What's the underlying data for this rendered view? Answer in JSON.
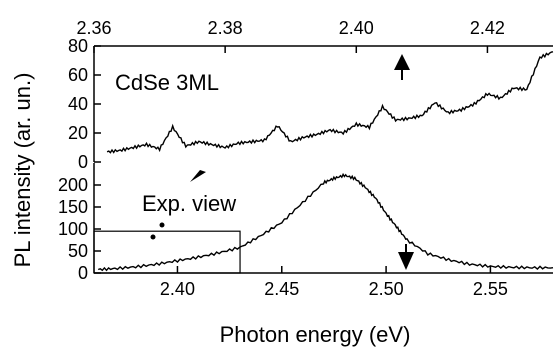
{
  "chart_data": {
    "type": "line",
    "panels": [
      {
        "id": "top",
        "axis": "top",
        "xlim": [
          2.36,
          2.43
        ],
        "ylim": [
          0,
          80
        ],
        "xticks": [
          2.36,
          2.38,
          2.4,
          2.42
        ],
        "xtick_labels": [
          "2.36",
          "2.38",
          "2.40",
          "2.42"
        ],
        "yticks": [
          0,
          20,
          40,
          60,
          80
        ],
        "ytick_labels": [
          "0",
          "20",
          "40",
          "60",
          "80"
        ],
        "label": "CdSe 3ML",
        "series": [
          {
            "x": [
              2.362,
              2.364,
              2.366,
              2.368,
              2.37,
              2.372,
              2.374,
              2.376,
              2.378,
              2.38,
              2.382,
              2.384,
              2.386,
              2.388,
              2.39,
              2.392,
              2.394,
              2.396,
              2.398,
              2.4,
              2.402,
              2.404,
              2.406,
              2.408,
              2.41,
              2.412,
              2.414,
              2.416,
              2.418,
              2.42,
              2.422,
              2.424,
              2.426,
              2.428,
              2.43
            ],
            "y": [
              7,
              8,
              10,
              12,
              9,
              24,
              11,
              14,
              12,
              10,
              13,
              14,
              15,
              25,
              14,
              17,
              19,
              22,
              20,
              26,
              24,
              38,
              29,
              30,
              32,
              41,
              34,
              36,
              40,
              47,
              44,
              51,
              50,
              72,
              76
            ]
          }
        ],
        "annotations": [
          "up-arrow"
        ]
      },
      {
        "id": "bottom",
        "axis": "bottom",
        "xlim": [
          2.36,
          2.58
        ],
        "ylim": [
          0,
          250
        ],
        "xticks": [
          2.4,
          2.45,
          2.5,
          2.55
        ],
        "xtick_labels": [
          "2.40",
          "2.45",
          "2.50",
          "2.55"
        ],
        "yticks": [
          0,
          50,
          100,
          150,
          200
        ],
        "ytick_labels": [
          "0",
          "50",
          "100",
          "150",
          "200"
        ],
        "xlabel": "Photon energy (eV)",
        "series": [
          {
            "x": [
              2.362,
              2.37,
              2.38,
              2.39,
              2.4,
              2.41,
              2.42,
              2.43,
              2.44,
              2.45,
              2.46,
              2.47,
              2.475,
              2.48,
              2.485,
              2.49,
              2.495,
              2.5,
              2.505,
              2.51,
              2.52,
              2.53,
              2.54,
              2.55,
              2.56,
              2.57,
              2.58
            ],
            "y": [
              8,
              10,
              14,
              20,
              28,
              36,
              46,
              58,
              85,
              115,
              160,
              205,
              215,
              222,
              215,
              195,
              170,
              135,
              105,
              75,
              44,
              30,
              20,
              15,
              13,
              12,
              12
            ]
          }
        ],
        "annotations": [
          "down-arrow"
        ]
      }
    ],
    "ylabel": "PL intensity (ar. un.)",
    "inset_label": "Exp. view"
  }
}
